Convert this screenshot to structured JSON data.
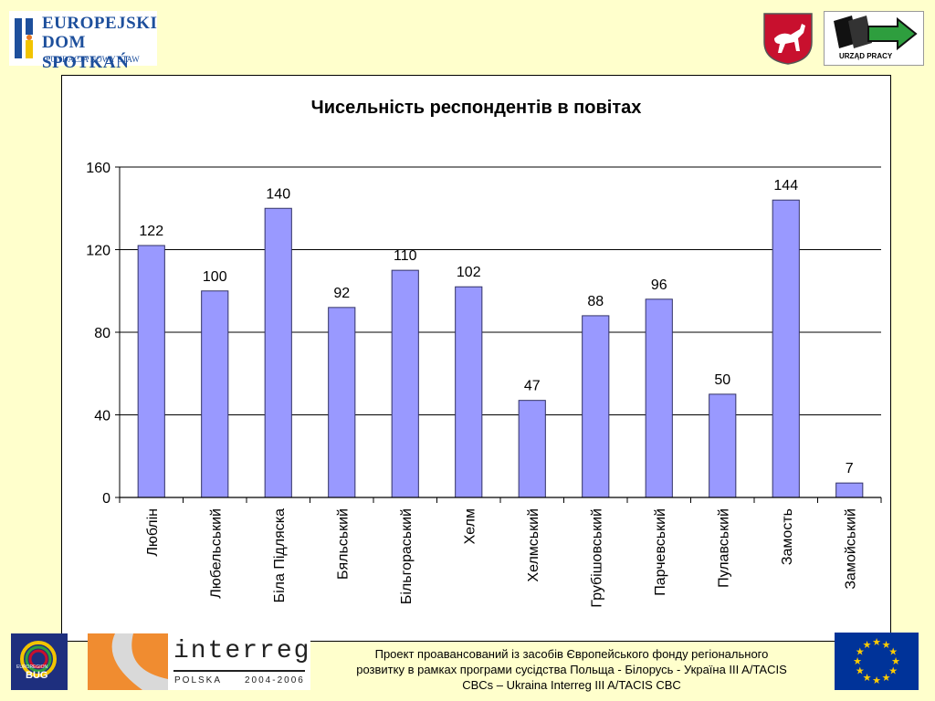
{
  "logos": {
    "edp": {
      "line1": "EUROPEJSKI",
      "line2": "DOM SPOTKAŃ",
      "line3": "FUNDACJA NOWY STAW"
    },
    "urzad": "URZĄD  PRACY",
    "bug": {
      "name": "BUG",
      "region": "EUROREGION"
    },
    "interreg": {
      "word": "interreg",
      "country": "POLSKA",
      "years": "2004-2006"
    }
  },
  "colors": {
    "background": "#ffffcc",
    "bar": "#9999ff",
    "bar_stroke": "#333366"
  },
  "chart_data": {
    "type": "bar",
    "title": "Чисельність респондентів в повітах",
    "categories": [
      "Люблін",
      "Любельський",
      "Біла Підляска",
      "Бяльський",
      "Більгораський",
      "Хелм",
      "Хелмський",
      "Грубішовський",
      "Парчевський",
      "Пулавський",
      "Замость",
      "Замойський"
    ],
    "values": [
      122,
      100,
      140,
      92,
      110,
      102,
      47,
      88,
      96,
      50,
      144,
      7
    ],
    "ylim": [
      0,
      160
    ],
    "yticks": [
      0,
      40,
      80,
      120,
      160
    ],
    "grid": true,
    "data_labels": true
  },
  "footer": {
    "text_line1": "Проект проавансований із засобів Європейського фонду регіонального",
    "text_line2": "розвитку в рамках програми сусідства Польща - Білорусь - Україна III A/TACIS",
    "text_line3": "CBCs – Ukraina Interreg III A/TACIS CBC"
  }
}
